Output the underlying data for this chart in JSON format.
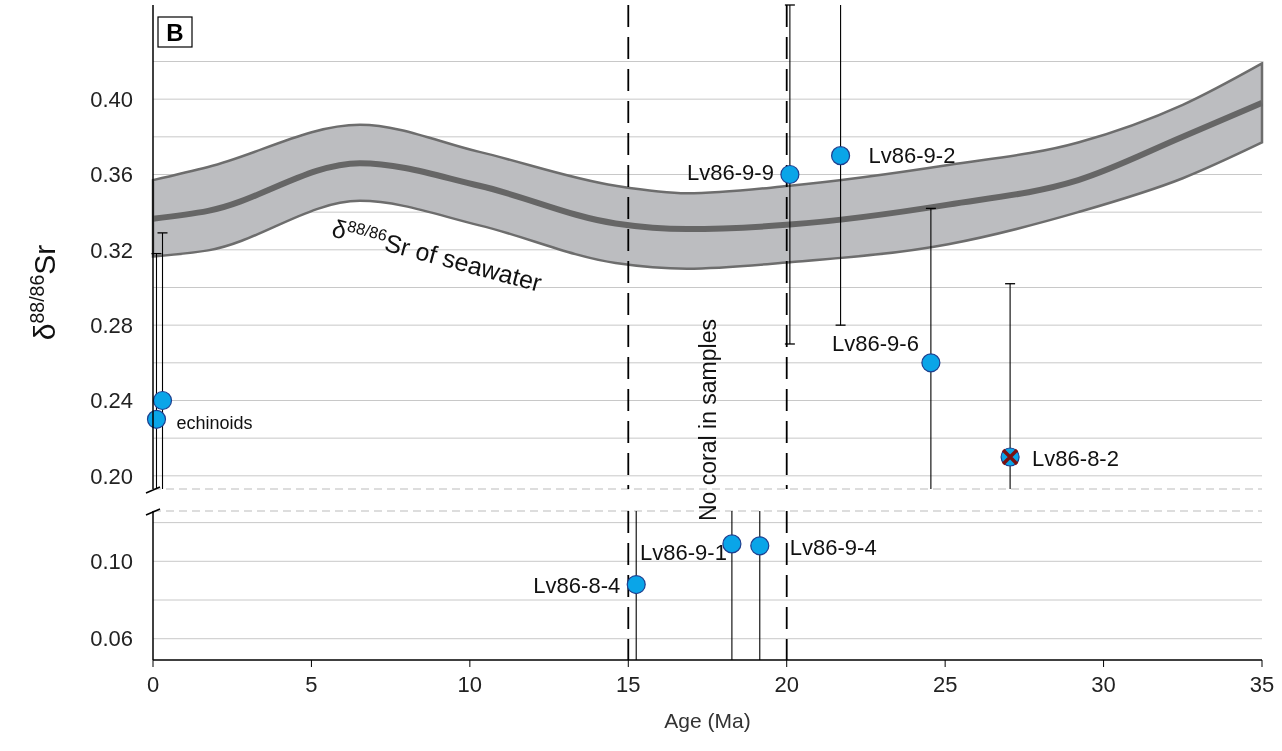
{
  "chart_data": [
    {
      "type": "scatter",
      "title": "B",
      "ylabel": "δ$^{88/86}$Sr",
      "xlim": [
        0,
        35
      ],
      "ylim": [
        0.193,
        0.45
      ],
      "yticks": [
        {
          "value": 0.2,
          "label": "0.20"
        },
        {
          "value": 0.22,
          "label": null
        },
        {
          "value": 0.24,
          "label": "0.24"
        },
        {
          "value": 0.26,
          "label": null
        },
        {
          "value": 0.28,
          "label": "0.28"
        },
        {
          "value": 0.3,
          "label": null
        },
        {
          "value": 0.32,
          "label": "0.32"
        },
        {
          "value": 0.34,
          "label": null
        },
        {
          "value": 0.36,
          "label": "0.36"
        },
        {
          "value": 0.38,
          "label": null
        },
        {
          "value": 0.4,
          "label": "0.40"
        },
        {
          "value": 0.42,
          "label": null
        }
      ],
      "grid": "y",
      "tick_labels": "y",
      "series": [
        {
          "type": "line",
          "name": "δ$^{88/86}$Sr of seawater",
          "color": "#666666",
          "x": [
            0,
            1.74,
            6.53,
            10.3,
            14.6,
            16.85,
            20.1,
            25.1,
            29.2,
            32.5,
            35
          ],
          "values": [
            0.3365,
            0.3407,
            0.366,
            0.354,
            0.334,
            0.331,
            0.3334,
            0.344,
            0.357,
            0.38,
            0.398
          ],
          "lower": [
            0.3165,
            0.3197,
            0.346,
            0.333,
            0.313,
            0.31,
            0.3134,
            0.323,
            0.34,
            0.358,
            0.377
          ],
          "upper": [
            0.357,
            0.364,
            0.3864,
            0.372,
            0.354,
            0.35,
            0.354,
            0.365,
            0.377,
            0.397,
            0.419
          ]
        },
        {
          "marker": "circle",
          "color": "#0aa5e8",
          "x": [
            0.11,
            0.3,
            20.1,
            21.7,
            24.55,
            27.05
          ],
          "values": [
            0.23,
            0.24,
            0.36,
            0.37,
            0.26,
            0.21
          ],
          "errors": [
            [
              0.193,
              0.318
            ],
            [
              0.193,
              0.329
            ],
            0.09,
            [
              0.28,
              0.45
            ],
            [
              0.193,
              0.342
            ],
            [
              0.193,
              0.302
            ]
          ]
        },
        {
          "marker": "cross",
          "color": "#7a1010",
          "x": [
            27.05
          ],
          "values": [
            0.21
          ]
        }
      ],
      "ref_lines": [
        {
          "axis": "x",
          "value": 15,
          "line_style": "dashed",
          "color": "#000000"
        },
        {
          "axis": "x",
          "value": 20,
          "line_style": "dashed",
          "color": "#000000"
        }
      ],
      "annotations": [
        {
          "text": "echinoids",
          "x": 0.11,
          "y": 0.23
        },
        {
          "text": "Lv86-9-9",
          "x": 20.1,
          "y": 0.36
        },
        {
          "text": "Lv86-9-2",
          "x": 21.7,
          "y": 0.37
        },
        {
          "text": "Lv86-9-6",
          "x": 24.55,
          "y": 0.26
        },
        {
          "text": "Lv86-8-2",
          "x": 27.05,
          "y": 0.21
        },
        "No coral in samples"
      ]
    },
    {
      "type": "scatter",
      "xlabel": "Age (Ma)",
      "xlim": [
        0,
        35
      ],
      "ylim": [
        0.049,
        0.126
      ],
      "xticks": [
        0,
        5,
        10,
        15,
        20,
        25,
        30,
        35
      ],
      "yticks": [
        {
          "value": 0.06,
          "label": "0.06"
        },
        {
          "value": 0.08,
          "label": null
        },
        {
          "value": 0.1,
          "label": "0.10"
        },
        {
          "value": 0.12,
          "label": null
        }
      ],
      "grid": "y",
      "series": [
        {
          "marker": "circle",
          "color": "#0aa5e8",
          "x": [
            15.25,
            18.27,
            19.15
          ],
          "values": [
            0.088,
            0.109,
            0.108
          ],
          "errors": [
            [
              0.049,
              0.126
            ],
            [
              0.049,
              0.126
            ],
            [
              0.049,
              0.126
            ]
          ]
        }
      ],
      "ref_lines": [
        {
          "axis": "x",
          "value": 15,
          "line_style": "dashed",
          "color": "#000000"
        },
        {
          "axis": "x",
          "value": 20,
          "line_style": "dashed",
          "color": "#000000"
        }
      ],
      "annotations": [
        {
          "text": "Lv86-8-4",
          "x": 15.25,
          "y": 0.088
        },
        {
          "text": "Lv86-9-1",
          "x": 18.27,
          "y": 0.109
        },
        {
          "text": "Lv86-9-4",
          "x": 19.15,
          "y": 0.108
        }
      ]
    }
  ]
}
